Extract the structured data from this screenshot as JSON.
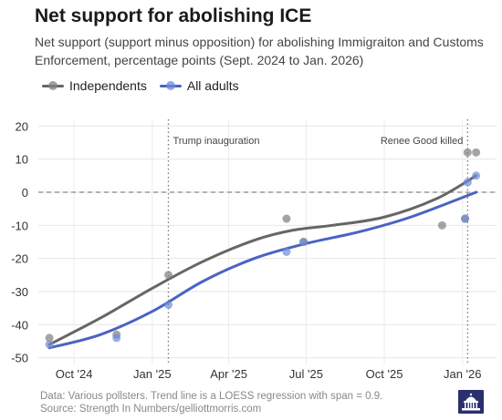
{
  "title": "Net support for abolishing ICE",
  "subtitle": "Net support (support minus opposition) for abolishing Immigraiton and Customs Enforcement, percentage points (Sept. 2024 to Jan. 2026)",
  "footer": {
    "line1": "Data: Various pollsters. Trend line is a LOESS regression with span = 0.9.",
    "line2": "Source: Strength In Numbers/gelliottmorris.com"
  },
  "chart_data": {
    "type": "scatter",
    "title": "Net support for abolishing ICE",
    "x_range": [
      "2024-08-20",
      "2026-02-10"
    ],
    "ylim": [
      -52,
      22
    ],
    "y_ticks": [
      20,
      10,
      0,
      -10,
      -20,
      -30,
      -40,
      -50
    ],
    "x_ticks": [
      {
        "date": "2024-10-01",
        "label": "Oct '24"
      },
      {
        "date": "2025-01-01",
        "label": "Jan '25"
      },
      {
        "date": "2025-04-01",
        "label": "Apr '25"
      },
      {
        "date": "2025-07-01",
        "label": "Jul '25"
      },
      {
        "date": "2025-10-01",
        "label": "Oct '25"
      },
      {
        "date": "2026-01-01",
        "label": "Jan '26"
      }
    ],
    "grid": true,
    "legend_position": "top-left",
    "reference_line": {
      "y": 0,
      "style": "dashed"
    },
    "annotations": [
      {
        "date": "2025-01-20",
        "label": "Trump inauguration"
      },
      {
        "date": "2026-01-07",
        "label": "Renee Good killed"
      }
    ],
    "series": [
      {
        "name": "Independents",
        "color": "#666666",
        "points": [
          {
            "x": "2024-09-02",
            "y": -44
          },
          {
            "x": "2024-11-20",
            "y": -43
          },
          {
            "x": "2025-01-20",
            "y": -25
          },
          {
            "x": "2025-06-08",
            "y": -8
          },
          {
            "x": "2025-06-28",
            "y": -15
          },
          {
            "x": "2025-12-08",
            "y": -10
          },
          {
            "x": "2026-01-04",
            "y": -8
          },
          {
            "x": "2026-01-07",
            "y": 12
          },
          {
            "x": "2026-01-17",
            "y": 12
          }
        ],
        "trend": [
          {
            "x": "2024-09-02",
            "y": -46
          },
          {
            "x": "2024-11-01",
            "y": -38
          },
          {
            "x": "2025-01-01",
            "y": -29
          },
          {
            "x": "2025-03-01",
            "y": -21
          },
          {
            "x": "2025-05-01",
            "y": -14.5
          },
          {
            "x": "2025-06-15",
            "y": -11.5
          },
          {
            "x": "2025-08-01",
            "y": -10
          },
          {
            "x": "2025-10-01",
            "y": -7.5
          },
          {
            "x": "2025-12-01",
            "y": -2
          },
          {
            "x": "2026-01-17",
            "y": 5
          }
        ]
      },
      {
        "name": "All adults",
        "color": "#4a63c4",
        "points": [
          {
            "x": "2024-09-02",
            "y": -46
          },
          {
            "x": "2024-11-20",
            "y": -44
          },
          {
            "x": "2025-01-20",
            "y": -34
          },
          {
            "x": "2025-06-08",
            "y": -18
          },
          {
            "x": "2025-06-28",
            "y": -15
          },
          {
            "x": "2026-01-04",
            "y": -8
          },
          {
            "x": "2026-01-07",
            "y": 3
          },
          {
            "x": "2026-01-17",
            "y": 5
          }
        ],
        "trend": [
          {
            "x": "2024-09-02",
            "y": -47
          },
          {
            "x": "2024-11-01",
            "y": -43
          },
          {
            "x": "2025-01-01",
            "y": -36
          },
          {
            "x": "2025-03-01",
            "y": -27
          },
          {
            "x": "2025-05-01",
            "y": -20
          },
          {
            "x": "2025-07-01",
            "y": -15.5
          },
          {
            "x": "2025-09-01",
            "y": -12
          },
          {
            "x": "2025-11-01",
            "y": -7.5
          },
          {
            "x": "2026-01-17",
            "y": 0
          }
        ]
      }
    ]
  }
}
